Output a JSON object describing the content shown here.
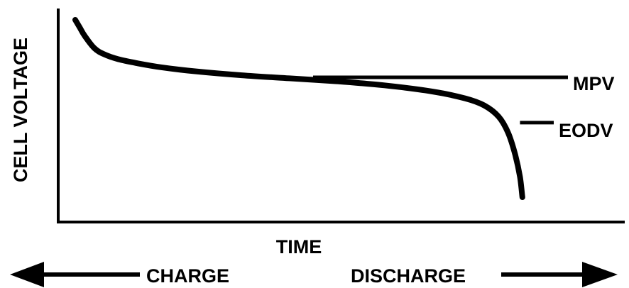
{
  "chart_data": {
    "type": "line",
    "title": "",
    "xlabel": "TIME",
    "ylabel": "CELL VOLTAGE",
    "x_ticks": false,
    "y_ticks": false,
    "grid": false,
    "series": [
      {
        "values": [
          [
            0.0,
            1.0
          ],
          [
            0.01,
            0.96
          ],
          [
            0.02,
            0.92
          ],
          [
            0.04,
            0.86
          ],
          [
            0.06,
            0.83
          ],
          [
            0.09,
            0.805
          ],
          [
            0.13,
            0.785
          ],
          [
            0.18,
            0.765
          ],
          [
            0.25,
            0.745
          ],
          [
            0.35,
            0.725
          ],
          [
            0.45,
            0.71
          ],
          [
            0.55,
            0.695
          ],
          [
            0.65,
            0.675
          ],
          [
            0.75,
            0.645
          ],
          [
            0.82,
            0.61
          ],
          [
            0.86,
            0.575
          ],
          [
            0.89,
            0.52
          ],
          [
            0.91,
            0.44
          ],
          [
            0.925,
            0.33
          ],
          [
            0.935,
            0.22
          ],
          [
            0.94,
            0.12
          ]
        ]
      }
    ],
    "reference_lines": [
      {
        "label": "MPV",
        "y": 0.715,
        "x_start": 0.5,
        "x_end": 1.0
      },
      {
        "label": "EODV",
        "y": 0.49,
        "x_start": 0.935,
        "x_end": 1.0
      }
    ],
    "axis_note": {
      "left": "CHARGE",
      "right": "DISCHARGE"
    },
    "colors": {
      "ink": "#000000",
      "background": "#ffffff"
    }
  }
}
